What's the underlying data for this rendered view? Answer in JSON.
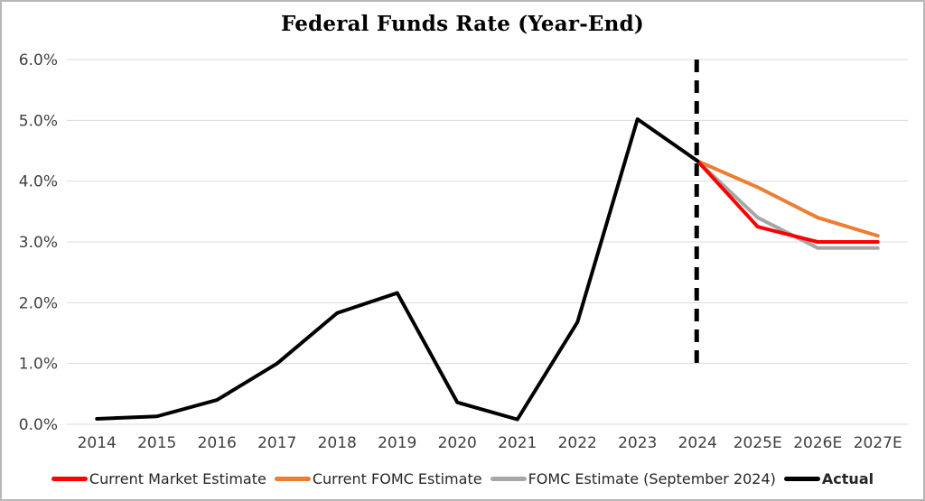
{
  "chart_data": {
    "type": "line",
    "title": "Federal Funds Rate (Year-End)",
    "categories": [
      "2014",
      "2015",
      "2016",
      "2017",
      "2018",
      "2019",
      "2020",
      "2021",
      "2022",
      "2023",
      "2024",
      "2025E",
      "2026E",
      "2027E"
    ],
    "series": [
      {
        "name": "Current Market Estimate",
        "color": "#FF0000",
        "bold_legend": false,
        "values": [
          null,
          null,
          null,
          null,
          null,
          null,
          null,
          null,
          null,
          null,
          4.33,
          3.25,
          3.0,
          3.0
        ]
      },
      {
        "name": "Current FOMC Estimate",
        "color": "#ED7D31",
        "bold_legend": false,
        "values": [
          null,
          null,
          null,
          null,
          null,
          null,
          null,
          null,
          null,
          null,
          4.33,
          3.9,
          3.4,
          3.1
        ]
      },
      {
        "name": "FOMC Estimate (September 2024)",
        "color": "#A6A6A6",
        "bold_legend": false,
        "values": [
          null,
          null,
          null,
          null,
          null,
          null,
          null,
          null,
          null,
          null,
          4.33,
          3.4,
          2.9,
          2.9
        ]
      },
      {
        "name": "Actual",
        "color": "#000000",
        "bold_legend": true,
        "values": [
          0.09,
          0.13,
          0.4,
          1.0,
          1.83,
          2.16,
          0.36,
          0.08,
          1.68,
          5.02,
          4.33,
          null,
          null,
          null
        ]
      }
    ],
    "draw_order": [
      "Current FOMC Estimate",
      "FOMC Estimate (September 2024)",
      "Current Market Estimate",
      "Actual"
    ],
    "ylim": [
      0,
      6
    ],
    "y_ticks": [
      {
        "value": 0,
        "label": "0.0%"
      },
      {
        "value": 1,
        "label": "1.0%"
      },
      {
        "value": 2,
        "label": "2.0%"
      },
      {
        "value": 3,
        "label": "3.0%"
      },
      {
        "value": 4,
        "label": "4.0%"
      },
      {
        "value": 5,
        "label": "5.0%"
      },
      {
        "value": 6,
        "label": "6.0%"
      }
    ],
    "xlabel": "",
    "ylabel": "",
    "grid": "horizontal",
    "grid_color": "#d9d9d9",
    "legend_position": "bottom",
    "annotation": {
      "type": "dashed-vertical-line",
      "at_category": "2024",
      "from_value": 6.0,
      "to_value": 0.93,
      "color": "#000000"
    }
  }
}
